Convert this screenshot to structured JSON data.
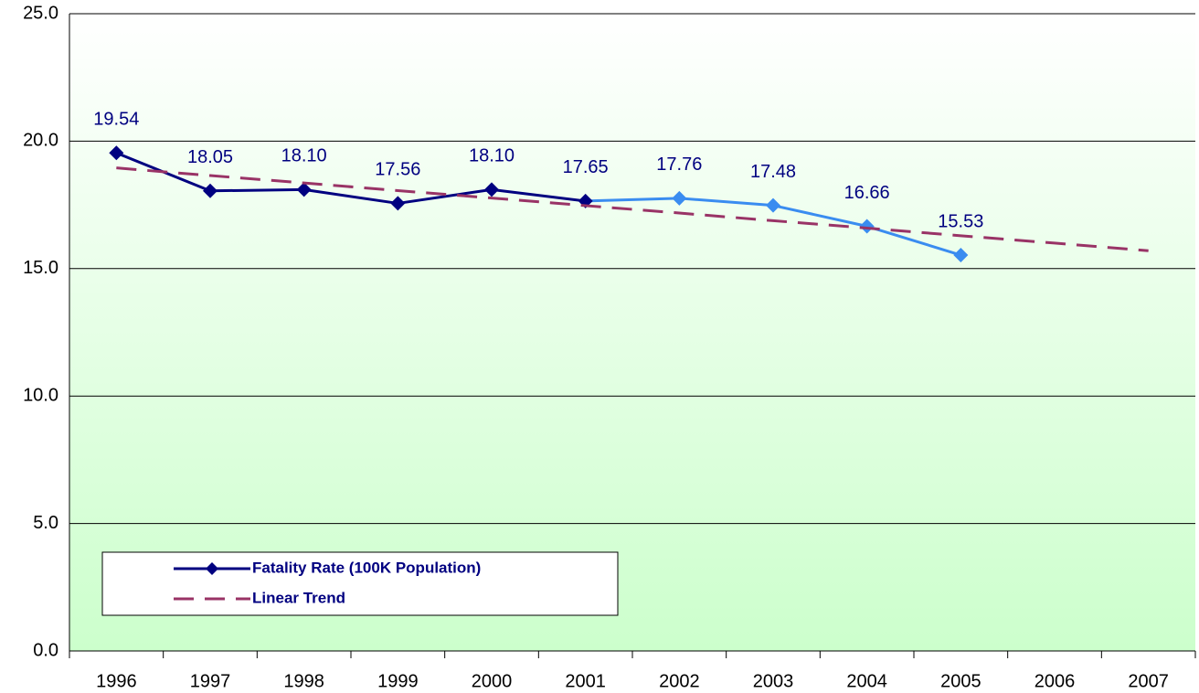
{
  "chart_data": {
    "type": "line",
    "categories": [
      "1996",
      "1997",
      "1998",
      "1999",
      "2000",
      "2001",
      "2002",
      "2003",
      "2004",
      "2005",
      "2006",
      "2007"
    ],
    "series": [
      {
        "name": "Fatality Rate (100K Population)",
        "color": "#000080",
        "marker_colors": [
          "#000080",
          "#000080",
          "#000080",
          "#000080",
          "#000080",
          "#000080",
          "#3a8cf0",
          "#3a8cf0",
          "#3a8cf0",
          "#3a8cf0",
          null,
          null
        ],
        "values": [
          19.54,
          18.05,
          18.1,
          17.56,
          18.1,
          17.65,
          17.76,
          17.48,
          16.66,
          15.53,
          null,
          null
        ],
        "value_labels": [
          "19.54",
          "18.05",
          "18.10",
          "17.56",
          "18.10",
          "17.65",
          "17.76",
          "17.48",
          "16.66",
          "15.53",
          null,
          null
        ]
      },
      {
        "name": "Linear Trend",
        "color": "#993366",
        "dashed": true,
        "values": [
          18.95,
          18.65,
          18.36,
          18.06,
          17.77,
          17.47,
          17.18,
          16.88,
          16.59,
          16.29,
          16.0,
          15.7
        ]
      }
    ],
    "ylim": [
      0,
      25
    ],
    "yticks": [
      {
        "value": 0,
        "label": "0.0"
      },
      {
        "value": 5,
        "label": "5.0"
      },
      {
        "value": 10,
        "label": "10.0"
      },
      {
        "value": 15,
        "label": "15.0"
      },
      {
        "value": 20,
        "label": "20.0"
      },
      {
        "value": 25,
        "label": "25.0"
      }
    ],
    "grid": true,
    "legend": "lower left"
  }
}
